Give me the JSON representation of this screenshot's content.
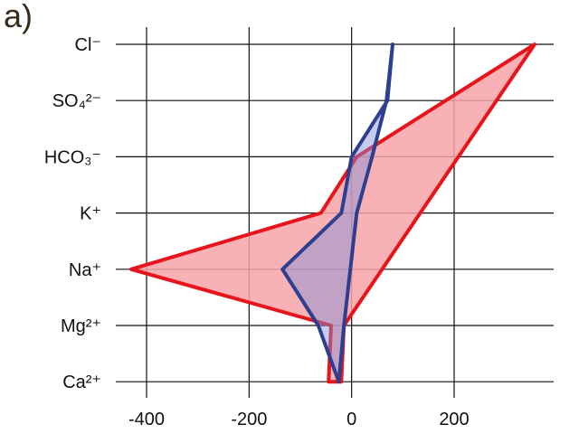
{
  "panel_label": "a)",
  "chart_data": {
    "type": "radar-polygon",
    "categories": [
      "Cl⁻",
      "SO₄²⁻",
      "HCO₃⁻",
      "K⁺",
      "Na⁺",
      "Mg²⁺",
      "Ca²⁺"
    ],
    "xlim": [
      -450,
      400
    ],
    "xticks": [
      -400,
      -200,
      0,
      200
    ],
    "xtick_labels": [
      "-400",
      "-200",
      "0",
      "200"
    ],
    "grid": true,
    "series": [
      {
        "color": "#e8141b",
        "fill": "#f7a5a8",
        "fill_opacity": 0.85,
        "points": [
          {
            "category": "Cl⁻",
            "x": 357
          },
          {
            "category": "HCO₃⁻",
            "x": 10
          },
          {
            "category": "K⁺",
            "x": -60
          },
          {
            "category": "Na⁺",
            "x": -430
          },
          {
            "category": "Mg²⁺",
            "x": -40
          },
          {
            "category": "Ca²⁺",
            "x": -45
          },
          {
            "category": "Ca²⁺",
            "x": -20
          },
          {
            "category": "Mg²⁺",
            "x": -15
          }
        ]
      },
      {
        "color": "#2f3f8f",
        "fill": "#7f8fd6",
        "fill_opacity": 0.45,
        "points": [
          {
            "category": "Cl⁻",
            "x": 80
          },
          {
            "category": "SO₄²⁻",
            "x": 70
          },
          {
            "category": "HCO₃⁻",
            "x": 0
          },
          {
            "category": "K⁺",
            "x": -20
          },
          {
            "category": "Na⁺",
            "x": -135
          },
          {
            "category": "Mg²⁺",
            "x": -65
          },
          {
            "category": "Ca²⁺",
            "x": -25
          },
          {
            "category": "Mg²⁺",
            "x": -15
          },
          {
            "category": "K⁺",
            "x": 10
          },
          {
            "category": "HCO₃⁻",
            "x": 40
          },
          {
            "category": "SO₄²⁻",
            "x": 68
          }
        ]
      }
    ]
  }
}
